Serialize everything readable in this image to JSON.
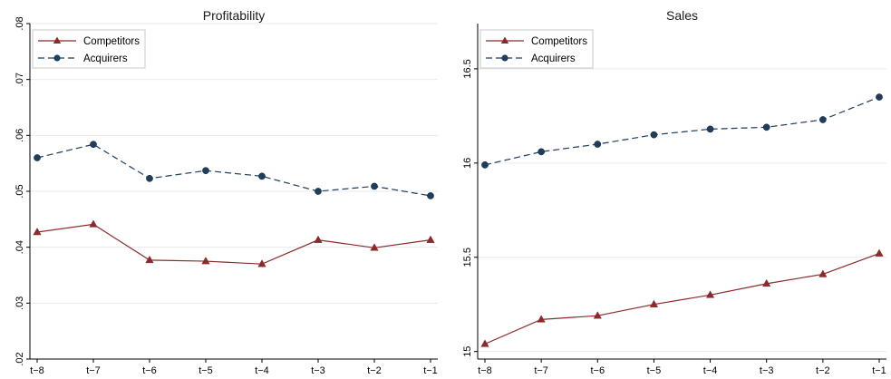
{
  "chart_data": [
    {
      "type": "line",
      "title": "Profitability",
      "xlabel": "",
      "ylabel": "",
      "categories": [
        "t−8",
        "t−7",
        "t−6",
        "t−5",
        "t−4",
        "t−3",
        "t−2",
        "t−1"
      ],
      "ylim": [
        0.02,
        0.08
      ],
      "yticks": [
        0.02,
        0.03,
        0.04,
        0.05,
        0.06,
        0.07,
        0.08
      ],
      "ytick_labels": [
        ".02",
        ".03",
        ".04",
        ".05",
        ".06",
        ".07",
        ".08"
      ],
      "grid": true,
      "legend_position": "top-left",
      "series": [
        {
          "name": "Competitors",
          "color": "#8b2a2a",
          "marker": "triangle",
          "line": "solid",
          "values": [
            0.0427,
            0.0441,
            0.0377,
            0.0375,
            0.037,
            0.0413,
            0.0399,
            0.0413
          ]
        },
        {
          "name": "Acquirers",
          "color": "#1f3d5c",
          "marker": "circle",
          "line": "dashed",
          "values": [
            0.056,
            0.0584,
            0.0523,
            0.0537,
            0.0527,
            0.05,
            0.0509,
            0.0492
          ]
        }
      ]
    },
    {
      "type": "line",
      "title": "Sales",
      "xlabel": "",
      "ylabel": "",
      "categories": [
        "t−8",
        "t−7",
        "t−6",
        "t−5",
        "t−4",
        "t−3",
        "t−2",
        "t−1"
      ],
      "ylim": [
        14.96,
        16.74
      ],
      "yticks": [
        15,
        15.5,
        16,
        16.5
      ],
      "ytick_labels": [
        "15",
        "15.5",
        "16",
        "16.5"
      ],
      "grid": true,
      "legend_position": "top-left",
      "series": [
        {
          "name": "Competitors",
          "color": "#8b2a2a",
          "marker": "triangle",
          "line": "solid",
          "values": [
            15.04,
            15.17,
            15.19,
            15.25,
            15.3,
            15.36,
            15.41,
            15.52
          ]
        },
        {
          "name": "Acquirers",
          "color": "#1f3d5c",
          "marker": "circle",
          "line": "dashed",
          "values": [
            15.99,
            16.06,
            16.1,
            16.15,
            16.18,
            16.19,
            16.23,
            16.35
          ]
        }
      ]
    }
  ]
}
